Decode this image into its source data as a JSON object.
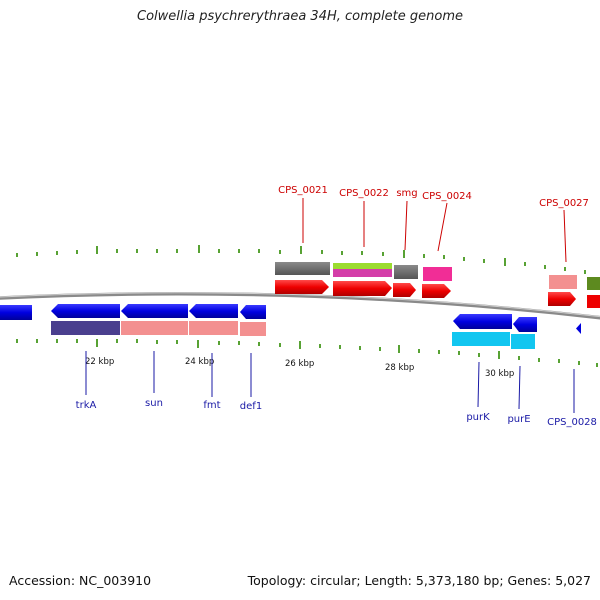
{
  "title": "Colwellia psychrerythraea 34H, complete genome",
  "footer": {
    "accession": "Accession: NC_003910",
    "summary": "Topology: circular; Length: 5,373,180 bp; Genes: 5,027"
  },
  "colors": {
    "top_label": "#cc0000",
    "bottom_label": "#1a1aa6",
    "tick": "#2e8b00",
    "backbone": "#8a8a8a"
  },
  "scale_labels": [
    "22 kbp",
    "24 kbp",
    "26 kbp",
    "28 kbp",
    "30 kbp"
  ],
  "top_labels": [
    "CPS_0021",
    "CPS_0022",
    "smg",
    "CPS_0024",
    "CPS_0027"
  ],
  "bottom_labels": [
    "trkA",
    "sun",
    "fmt",
    "def1",
    "purK",
    "purE",
    "CPS_0028"
  ]
}
